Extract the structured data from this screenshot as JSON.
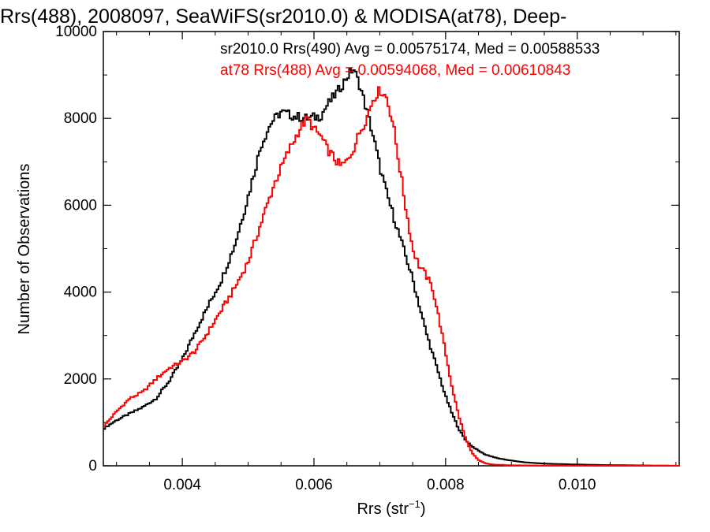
{
  "chart_data": {
    "type": "line",
    "title": "Rrs(488), 2008097, SeaWiFS(sr2010.0) & MODISA(at78), Deep-",
    "xlabel": "Rrs (str",
    "xlabel_sup": "−1",
    "xlabel_close": ")",
    "ylabel": "Number of Observations",
    "xlim": [
      0.0028,
      0.01155
    ],
    "ylim": [
      0,
      10000
    ],
    "xticks": [
      0.004,
      0.006,
      0.008,
      0.01
    ],
    "xtick_labels": [
      "0.004",
      "0.006",
      "0.008",
      "0.010"
    ],
    "yticks": [
      0,
      2000,
      4000,
      6000,
      8000,
      10000
    ],
    "ytick_labels": [
      "0",
      "2000",
      "4000",
      "6000",
      "8000",
      "10000"
    ],
    "grid": false,
    "legend_position": "top-right",
    "series": [
      {
        "name": "sr2010.0 Rrs(490) Avg = 0.00575174, Med = 0.00588533",
        "color": "#000000",
        "x": [
          0.0028,
          0.003,
          0.0032,
          0.0034,
          0.0036,
          0.0038,
          0.004,
          0.0042,
          0.0044,
          0.0046,
          0.0048,
          0.005,
          0.0052,
          0.00535,
          0.0055,
          0.0057,
          0.0059,
          0.0061,
          0.0062,
          0.0063,
          0.0064,
          0.0065,
          0.0066,
          0.0067,
          0.0068,
          0.0069,
          0.007,
          0.0071,
          0.0072,
          0.0073,
          0.0074,
          0.0075,
          0.0076,
          0.0077,
          0.0078,
          0.0079,
          0.008,
          0.0081,
          0.0082,
          0.0083,
          0.0084,
          0.0085,
          0.0086,
          0.0088,
          0.009,
          0.0092,
          0.0095,
          0.01,
          0.0105,
          0.011,
          0.01155
        ],
        "y": [
          850,
          1050,
          1200,
          1350,
          1550,
          1950,
          2450,
          3100,
          3700,
          4300,
          5100,
          6200,
          7400,
          7900,
          8150,
          8050,
          8000,
          8050,
          8300,
          8500,
          8700,
          8950,
          9150,
          8750,
          8200,
          7600,
          6900,
          6300,
          5800,
          5300,
          4800,
          4300,
          3700,
          3100,
          2600,
          2100,
          1600,
          1200,
          850,
          600,
          450,
          350,
          260,
          170,
          120,
          80,
          50,
          30,
          15,
          8,
          0
        ]
      },
      {
        "name": "at78 Rrs(488) Avg = 0.00594068, Med = 0.00610843",
        "color": "#ff0000",
        "x": [
          0.0028,
          0.003,
          0.0032,
          0.0034,
          0.0036,
          0.0038,
          0.004,
          0.0042,
          0.0044,
          0.0046,
          0.0048,
          0.005,
          0.0052,
          0.0054,
          0.0056,
          0.0058,
          0.0059,
          0.006,
          0.0061,
          0.0062,
          0.0063,
          0.0064,
          0.0065,
          0.0066,
          0.0067,
          0.0068,
          0.0069,
          0.007,
          0.0071,
          0.0072,
          0.0073,
          0.0074,
          0.0075,
          0.0076,
          0.0077,
          0.0078,
          0.0079,
          0.008,
          0.0081,
          0.0082,
          0.0083,
          0.0084,
          0.0085,
          0.0086,
          0.0087,
          0.009,
          0.0095,
          0.01,
          0.0105,
          0.011,
          0.01155
        ],
        "y": [
          900,
          1250,
          1550,
          1700,
          2000,
          2250,
          2400,
          2650,
          3100,
          3600,
          4100,
          4700,
          5600,
          6500,
          7200,
          7800,
          8000,
          7750,
          7600,
          7300,
          7100,
          6900,
          7000,
          7300,
          7700,
          8000,
          8450,
          8650,
          8500,
          7900,
          6900,
          5900,
          5000,
          4600,
          4400,
          4100,
          3400,
          2600,
          1800,
          1150,
          650,
          300,
          130,
          60,
          30,
          12,
          5,
          2,
          0,
          0,
          0
        ]
      }
    ]
  }
}
